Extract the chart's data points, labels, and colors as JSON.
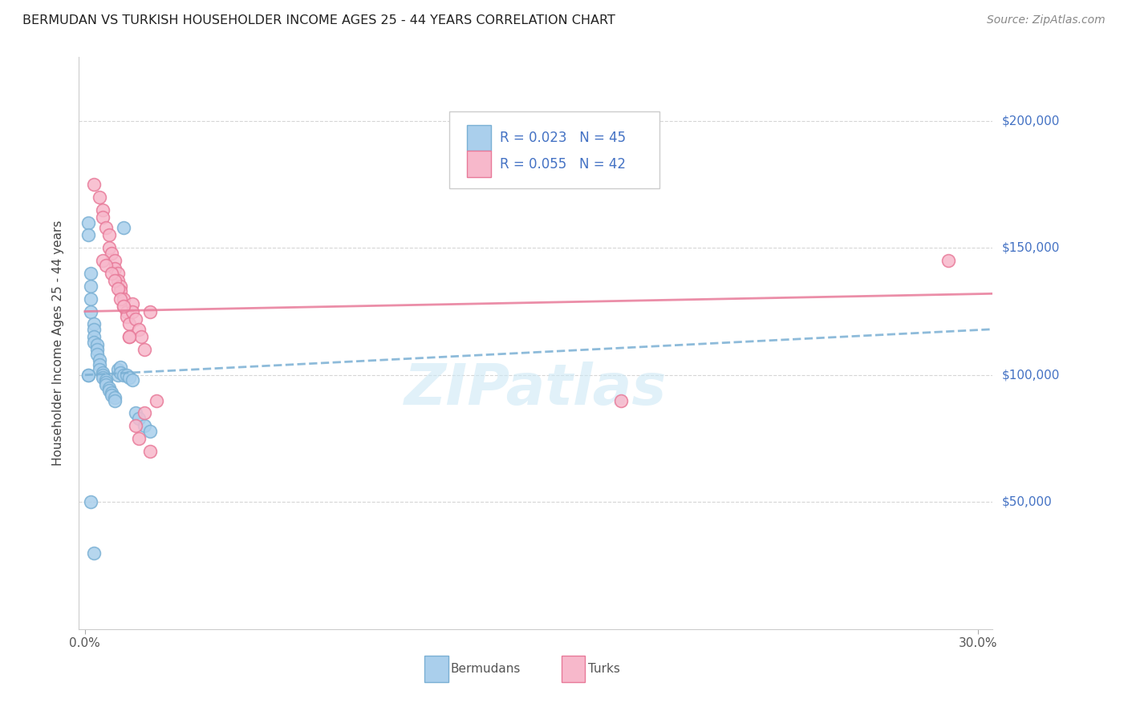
{
  "title": "BERMUDAN VS TURKISH HOUSEHOLDER INCOME AGES 25 - 44 YEARS CORRELATION CHART",
  "source": "Source: ZipAtlas.com",
  "ylabel": "Householder Income Ages 25 - 44 years",
  "xlim": [
    -0.002,
    0.305
  ],
  "ylim": [
    0,
    225000
  ],
  "ytick_values": [
    50000,
    100000,
    150000,
    200000
  ],
  "ytick_labels": [
    "$50,000",
    "$100,000",
    "$150,000",
    "$200,000"
  ],
  "bg_color": "#ffffff",
  "grid_color": "#cccccc",
  "bermuda_color": "#aacfec",
  "turk_color": "#f7b8cb",
  "bermuda_edge": "#7ab0d4",
  "turk_edge": "#e87a99",
  "blue_line_color": "#7ab0d4",
  "pink_line_color": "#e87a99",
  "right_label_color": "#4472C4",
  "legend_text_color": "#4472C4",
  "watermark": "ZIPatlas",
  "watermark_color": "#cde8f5",
  "legend_R_bermuda": "R = 0.023",
  "legend_N_bermuda": "N = 45",
  "legend_R_turk": "R = 0.055",
  "legend_N_turk": "N = 42",
  "bermuda_x": [
    0.001,
    0.001,
    0.002,
    0.002,
    0.002,
    0.002,
    0.003,
    0.003,
    0.003,
    0.003,
    0.004,
    0.004,
    0.004,
    0.005,
    0.005,
    0.005,
    0.006,
    0.006,
    0.006,
    0.007,
    0.007,
    0.007,
    0.008,
    0.008,
    0.009,
    0.009,
    0.01,
    0.01,
    0.011,
    0.011,
    0.012,
    0.012,
    0.013,
    0.014,
    0.015,
    0.016,
    0.017,
    0.018,
    0.02,
    0.022,
    0.002,
    0.003,
    0.001,
    0.001,
    0.013
  ],
  "bermuda_y": [
    160000,
    155000,
    140000,
    135000,
    130000,
    125000,
    120000,
    118000,
    115000,
    113000,
    112000,
    110000,
    108000,
    106000,
    104000,
    102000,
    101000,
    100000,
    99000,
    98000,
    97000,
    96000,
    95000,
    94000,
    93000,
    92000,
    91000,
    90000,
    100000,
    102000,
    103000,
    101000,
    100000,
    100000,
    99000,
    98000,
    85000,
    83000,
    80000,
    78000,
    50000,
    30000,
    100000,
    100000,
    158000
  ],
  "turk_x": [
    0.003,
    0.005,
    0.006,
    0.006,
    0.007,
    0.008,
    0.008,
    0.009,
    0.01,
    0.01,
    0.011,
    0.011,
    0.012,
    0.012,
    0.013,
    0.013,
    0.014,
    0.014,
    0.015,
    0.015,
    0.016,
    0.016,
    0.017,
    0.018,
    0.019,
    0.02,
    0.022,
    0.006,
    0.007,
    0.009,
    0.01,
    0.011,
    0.012,
    0.013,
    0.015,
    0.017,
    0.018,
    0.02,
    0.022,
    0.024,
    0.29,
    0.18
  ],
  "turk_y": [
    175000,
    170000,
    165000,
    162000,
    158000,
    155000,
    150000,
    148000,
    145000,
    142000,
    140000,
    137000,
    135000,
    133000,
    130000,
    127000,
    125000,
    123000,
    120000,
    115000,
    128000,
    125000,
    122000,
    118000,
    115000,
    110000,
    125000,
    145000,
    143000,
    140000,
    137000,
    134000,
    130000,
    127000,
    115000,
    80000,
    75000,
    85000,
    70000,
    90000,
    145000,
    90000
  ],
  "blue_line_x": [
    0.0,
    0.305
  ],
  "blue_line_y": [
    100000,
    118000
  ],
  "pink_line_x": [
    0.0,
    0.305
  ],
  "pink_line_y": [
    125000,
    132000
  ]
}
